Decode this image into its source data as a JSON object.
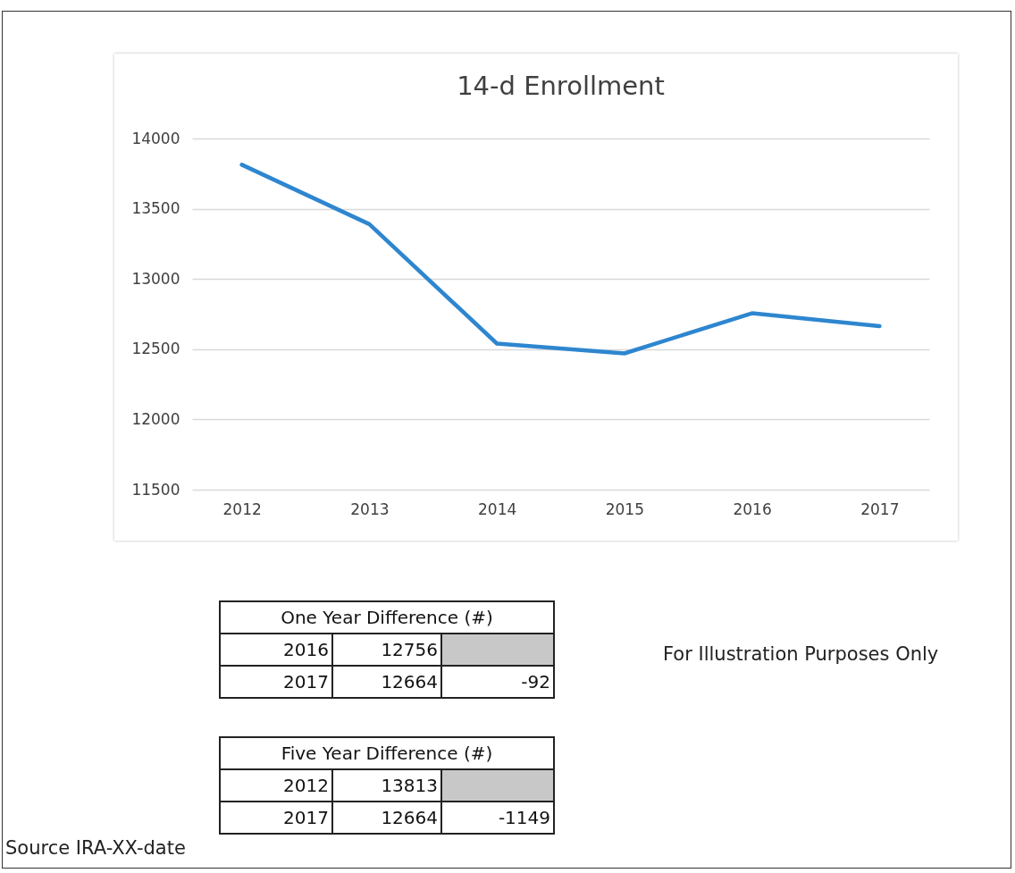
{
  "chart_data": {
    "type": "line",
    "title": "14-d Enrollment",
    "categories": [
      "2012",
      "2013",
      "2014",
      "2015",
      "2016",
      "2017"
    ],
    "series": [
      {
        "color": "#2e86cf",
        "values": [
          13813,
          13390,
          12540,
          12470,
          12756,
          12664
        ]
      }
    ],
    "ylim": [
      11500,
      14000
    ],
    "yticks": [
      11500,
      12000,
      12500,
      13000,
      13500,
      14000
    ],
    "grid": "y",
    "marker": "none",
    "line_style": "solid",
    "annotations": [
      "One Year Difference (#)",
      "2016",
      "12756",
      "2017",
      "12664",
      "-92",
      "Five Year Difference (#)",
      "2012",
      "13813",
      "2017",
      "12664",
      "-1149",
      "For Illustration Purposes Only",
      "Source IRA-XX-date"
    ]
  }
}
